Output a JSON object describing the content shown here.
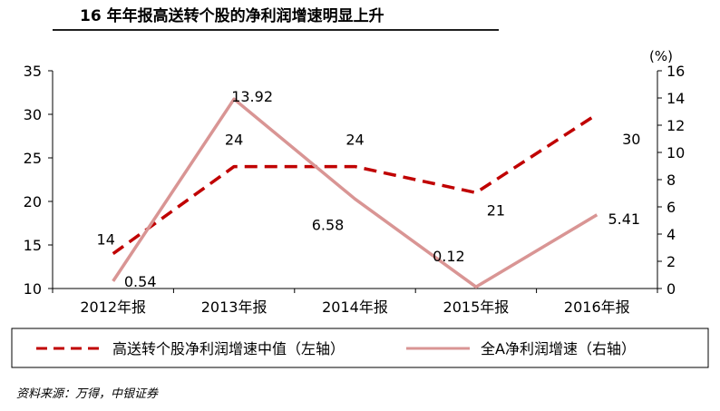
{
  "title": "16 年年报高送转个股的净利润增速明显上升",
  "source": "资料来源：万得，中银证券",
  "colors": {
    "left_series": "#c00000",
    "right_series": "#d99594",
    "axis": "#000000",
    "title_rule": "#1f1f1f"
  },
  "chart_data": {
    "type": "line",
    "categories": [
      "2012年报",
      "2013年报",
      "2014年报",
      "2015年报",
      "2016年报"
    ],
    "left_axis": {
      "ylim": [
        10,
        35
      ],
      "ticks": [
        "10",
        "15",
        "20",
        "25",
        "30",
        "35"
      ]
    },
    "right_axis": {
      "ylim": [
        0,
        16
      ],
      "unit": "(%)",
      "ticks": [
        "0",
        "2",
        "4",
        "6",
        "8",
        "10",
        "12",
        "14",
        "16"
      ]
    },
    "series": [
      {
        "name": "高送转个股净利润增速中值（左轴）",
        "axis": "left",
        "style": "dashed",
        "values": [
          14,
          24,
          24,
          21,
          30
        ],
        "labels": [
          "14",
          "24",
          "24",
          "21",
          "30"
        ]
      },
      {
        "name": "全A净利润增速（右轴）",
        "axis": "right",
        "style": "solid",
        "values": [
          0.54,
          13.92,
          6.58,
          0.12,
          5.41
        ],
        "labels": [
          "0.54",
          "13.92",
          "6.58",
          "0.12",
          "5.41"
        ]
      }
    ],
    "legend": "bottom"
  }
}
